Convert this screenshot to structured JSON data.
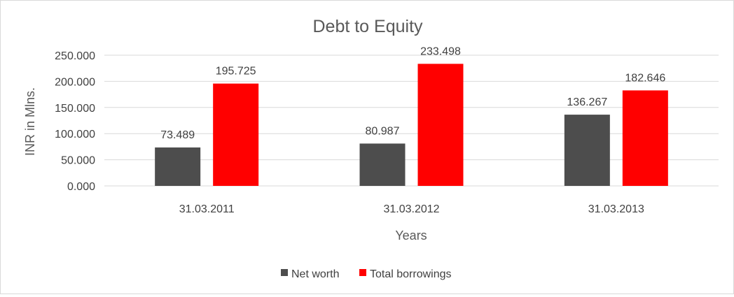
{
  "chart_data": {
    "type": "bar",
    "title": "Debt to Equity",
    "xlabel": "Years",
    "ylabel": "INR in Mlns.",
    "categories": [
      "31.03.2011",
      "31.03.2012",
      "31.03.2013"
    ],
    "series": [
      {
        "name": "Net worth",
        "color": "#4d4d4d",
        "values": [
          73.489,
          80.987,
          136.267
        ],
        "labels": [
          "73.489",
          "80.987",
          "136.267"
        ]
      },
      {
        "name": "Total borrowings",
        "color": "#ff0000",
        "values": [
          195.725,
          233.498,
          182.646
        ],
        "labels": [
          "195.725",
          "233.498",
          "182.646"
        ]
      }
    ],
    "ylim": [
      0,
      250
    ],
    "yticks": [
      0,
      50,
      100,
      150,
      200,
      250
    ],
    "ytick_labels": [
      "0.000",
      "50.000",
      "100.000",
      "150.000",
      "200.000",
      "250.000"
    ],
    "grid": true,
    "legend_position": "bottom",
    "gridline_color": "#d9d9d9"
  }
}
